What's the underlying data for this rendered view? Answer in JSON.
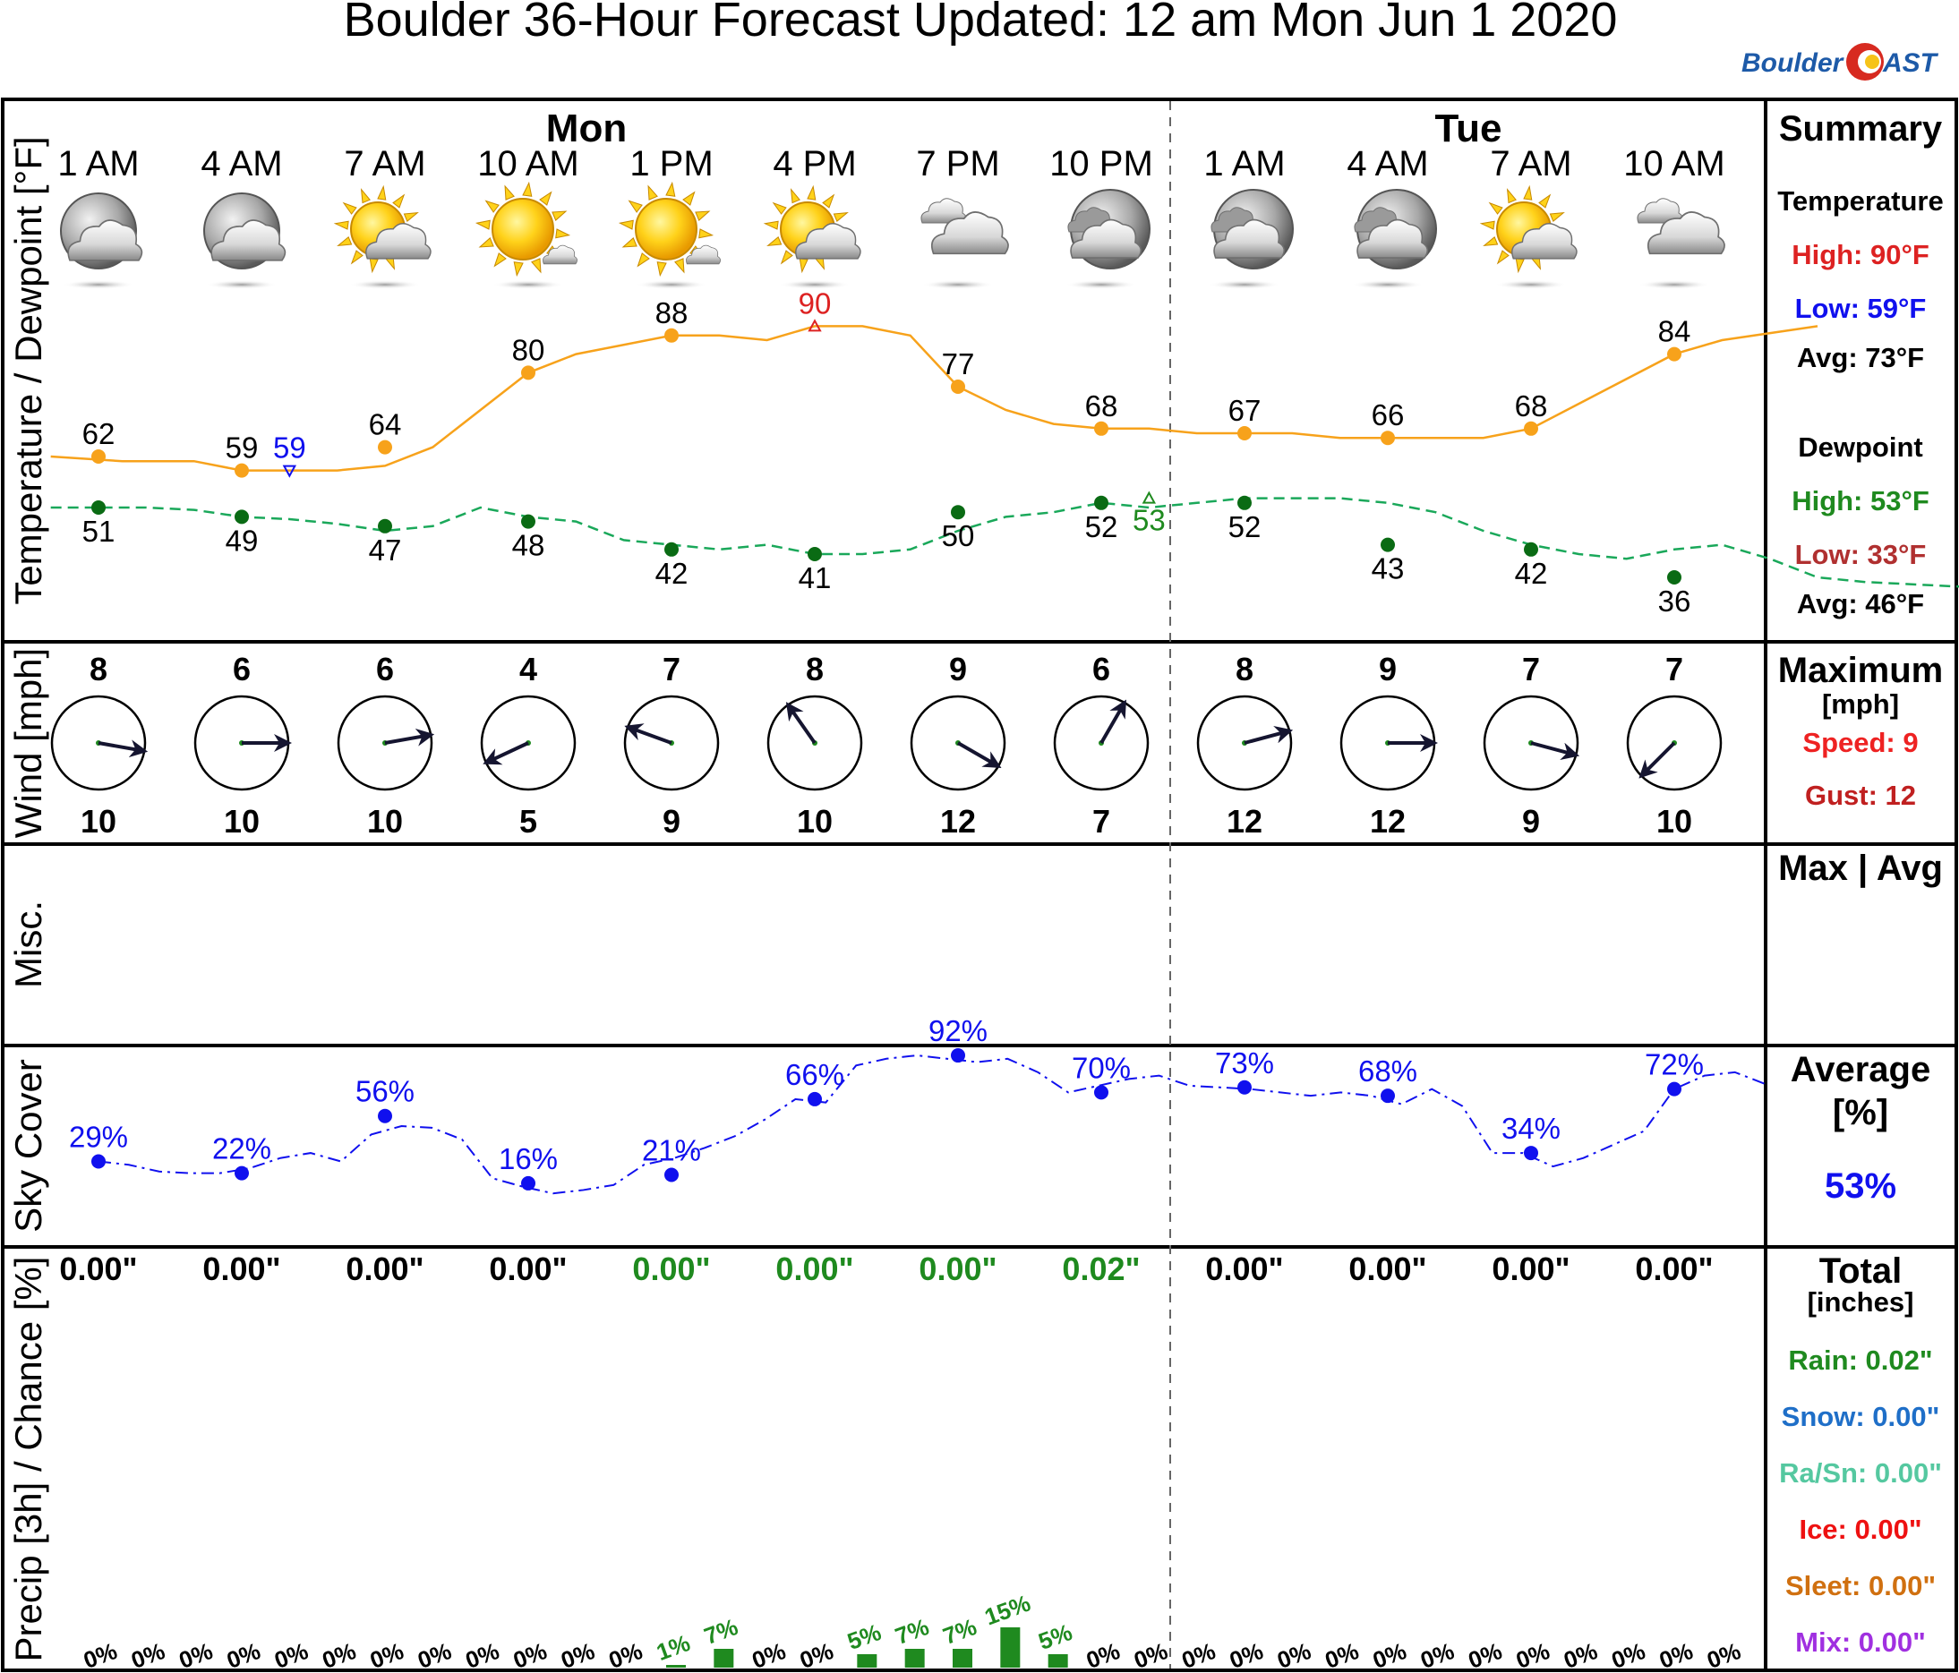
{
  "title": "Boulder 36-Hour Forecast Updated: 12 am Mon Jun 1 2020",
  "logo": {
    "text_a": "Boulder",
    "text_b": "AST",
    "colors": {
      "blue": "#1d5aa8",
      "red": "#d72a20",
      "gold": "#f6c319"
    }
  },
  "days": [
    {
      "label": "Mon",
      "index": 3
    },
    {
      "label": "Tue",
      "index": 9
    }
  ],
  "hours": [
    "1 AM",
    "4 AM",
    "7 AM",
    "10 AM",
    "1 PM",
    "4 PM",
    "7 PM",
    "10 PM",
    "1 AM",
    "4 AM",
    "7 AM",
    "10 AM"
  ],
  "icons": [
    "partly-cloudy-night-icon",
    "partly-cloudy-night-icon",
    "partly-sunny-icon",
    "mostly-sunny-icon",
    "mostly-sunny-icon",
    "partly-sunny-icon",
    "cloudy-icon",
    "mostly-cloudy-night-icon",
    "mostly-cloudy-night-icon",
    "mostly-cloudy-night-icon",
    "partly-sunny-icon",
    "cloudy-icon"
  ],
  "panel_labels": {
    "temp": "Temperature / Dewpoint [°F]",
    "wind": "Wind [mph]",
    "misc": "Misc.",
    "sky": "Sky Cover",
    "precip": "Precip [3h] / Chance [%]"
  },
  "chart_data": {
    "type": "line",
    "x": [
      1,
      4,
      7,
      10,
      13,
      16,
      19,
      22,
      25,
      28,
      31,
      34
    ],
    "temperature": {
      "values": [
        62,
        59,
        64,
        80,
        88,
        null,
        77,
        68,
        67,
        66,
        68,
        84
      ],
      "high": {
        "value": 90,
        "hour": 16
      },
      "low": {
        "value": 59,
        "hour": 5
      },
      "color": "#f7a21b"
    },
    "dewpoint": {
      "values": [
        51,
        49,
        47,
        48,
        42,
        41,
        50,
        52,
        52,
        43,
        42,
        36
      ],
      "high": {
        "value": 53,
        "hour": 23
      },
      "color": "#1aa85a",
      "dot_color": "#0a6b14"
    },
    "wind": {
      "speed": [
        8,
        6,
        6,
        4,
        7,
        8,
        9,
        6,
        8,
        9,
        7,
        7
      ],
      "gust": [
        10,
        10,
        10,
        5,
        9,
        10,
        12,
        7,
        12,
        12,
        9,
        10
      ],
      "direction_to_deg": [
        100,
        90,
        80,
        245,
        290,
        325,
        120,
        30,
        75,
        90,
        105,
        225
      ]
    },
    "sky_cover": {
      "values": [
        29,
        22,
        56,
        16,
        21,
        66,
        92,
        70,
        73,
        68,
        34,
        72
      ],
      "color": "#1010ee"
    },
    "precip": {
      "amounts": [
        "0.00\"",
        "0.00\"",
        "0.00\"",
        "0.00\"",
        "0.00\"",
        "0.00\"",
        "0.00\"",
        "0.02\"",
        "0.00\"",
        "0.00\"",
        "0.00\"",
        "0.00\""
      ],
      "amount_colors": [
        "#000",
        "#000",
        "#000",
        "#000",
        "#1f8a1f",
        "#1f8a1f",
        "#1f8a1f",
        "#1f8a1f",
        "#000",
        "#000",
        "#000",
        "#000"
      ],
      "chance_hours": [
        1,
        2,
        3,
        4,
        5,
        6,
        7,
        8,
        9,
        10,
        11,
        12,
        13,
        14,
        15,
        16,
        17,
        18,
        19,
        20,
        21,
        22,
        23,
        24,
        25,
        26,
        27,
        28,
        29,
        30,
        31,
        32,
        33,
        34,
        35
      ],
      "chance_values": [
        0,
        0,
        0,
        0,
        0,
        0,
        0,
        0,
        0,
        0,
        0,
        0,
        1,
        7,
        0,
        0,
        5,
        7,
        7,
        15,
        5,
        0,
        0,
        0,
        0,
        0,
        0,
        0,
        0,
        0,
        0,
        0,
        0,
        0,
        0
      ]
    }
  },
  "summary": {
    "temp_title": "Summary",
    "temp_sub": "Temperature",
    "temp_high": "High: 90°F",
    "temp_low": "Low: 59°F",
    "temp_avg": "Avg: 73°F",
    "dew_sub": "Dewpoint",
    "dew_high": "High: 53°F",
    "dew_low": "Low: 33°F",
    "dew_avg": "Avg: 46°F",
    "wind_title": "Maximum",
    "wind_unit": "[mph]",
    "wind_speed": "Speed: 9",
    "wind_gust": "Gust: 12",
    "misc_title": "Max | Avg",
    "sky_title": "Average",
    "sky_unit": "[%]",
    "sky_value": "53%",
    "precip_title": "Total",
    "precip_unit": "[inches]",
    "rain": "Rain: 0.02\"",
    "snow": "Snow: 0.00\"",
    "rasn": "Ra/Sn: 0.00\"",
    "ice": "Ice: 0.00\"",
    "sleet": "Sleet: 0.00\"",
    "mix": "Mix: 0.00\"",
    "colors": {
      "high": "#dd2222",
      "low": "#1010ee",
      "dew_high": "#1f8a1f",
      "dew_low": "#b03030",
      "rain": "#1f8a1f",
      "snow": "#1f6fc8",
      "rasn": "#55c8a0",
      "ice": "#ee1111",
      "sleet": "#d07010",
      "mix": "#a030e0"
    }
  }
}
